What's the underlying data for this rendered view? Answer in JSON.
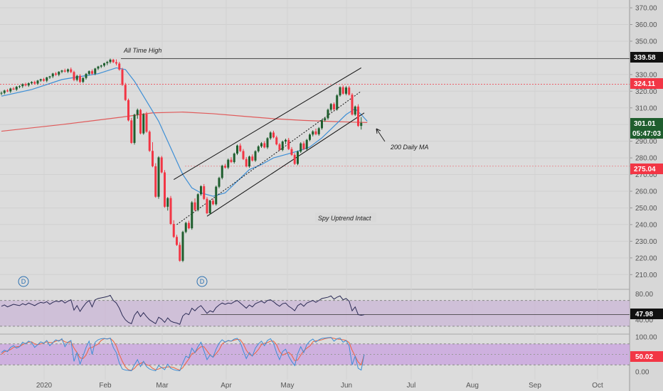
{
  "chart_data": {
    "type": "candlestick",
    "price_axis": {
      "ticks": [
        "370.00",
        "360.00",
        "350.00",
        "340.00",
        "330.00",
        "320.00",
        "310.00",
        "300.00",
        "290.00",
        "280.00",
        "270.00",
        "260.00",
        "250.00",
        "240.00",
        "230.00",
        "220.00",
        "210.00"
      ],
      "range": [
        205,
        373
      ]
    },
    "time_axis": {
      "ticks": [
        "2020",
        "Feb",
        "Mar",
        "Apr",
        "May",
        "Jun",
        "Jul",
        "Aug",
        "Sep",
        "Oct"
      ]
    },
    "price_labels": {
      "all_time_high": "339.58",
      "level_324": "324.11",
      "last_price": "301.01",
      "countdown": "05:47:03",
      "level_275": "275.04"
    },
    "annotations": {
      "ath": "All Time High",
      "ma200": "200 Daily MA",
      "uptrend": "Spy Uptrend Intact",
      "dividend_badge": "D"
    },
    "ohlc": [
      [
        318.6,
        319.8,
        317.6,
        319.0
      ],
      [
        319.0,
        320.9,
        318.1,
        320.4
      ],
      [
        320.4,
        321.3,
        319.5,
        319.9
      ],
      [
        319.9,
        322.1,
        319.0,
        321.6
      ],
      [
        321.6,
        322.5,
        320.7,
        321.0
      ],
      [
        321.0,
        323.1,
        320.2,
        322.7
      ],
      [
        322.7,
        323.6,
        321.8,
        323.0
      ],
      [
        323.0,
        324.7,
        322.0,
        324.2
      ],
      [
        324.2,
        325.1,
        322.9,
        323.5
      ],
      [
        323.5,
        325.3,
        322.6,
        324.8
      ],
      [
        324.8,
        326.0,
        324.0,
        325.5
      ],
      [
        325.5,
        326.3,
        324.1,
        324.6
      ],
      [
        324.6,
        326.8,
        323.8,
        326.4
      ],
      [
        326.4,
        327.5,
        325.6,
        327.2
      ],
      [
        327.2,
        328.0,
        325.7,
        326.3
      ],
      [
        326.3,
        328.6,
        325.4,
        328.3
      ],
      [
        328.3,
        329.2,
        327.4,
        328.9
      ],
      [
        328.9,
        331.0,
        327.9,
        330.6
      ],
      [
        330.6,
        331.5,
        329.2,
        329.9
      ],
      [
        329.9,
        332.0,
        329.0,
        331.7
      ],
      [
        331.7,
        332.8,
        330.8,
        332.4
      ],
      [
        332.4,
        333.5,
        331.2,
        331.8
      ],
      [
        331.8,
        333.6,
        330.9,
        333.1
      ],
      [
        333.1,
        334.2,
        330.8,
        331.5
      ],
      [
        331.5,
        332.3,
        326.0,
        326.8
      ],
      [
        326.8,
        329.8,
        325.9,
        329.2
      ],
      [
        329.2,
        330.2,
        324.8,
        325.6
      ],
      [
        325.6,
        328.4,
        324.9,
        327.9
      ],
      [
        327.9,
        330.9,
        327.0,
        330.4
      ],
      [
        330.4,
        332.5,
        329.5,
        332.0
      ],
      [
        332.0,
        333.0,
        329.8,
        330.5
      ],
      [
        330.5,
        334.0,
        329.6,
        333.6
      ],
      [
        333.6,
        335.2,
        332.7,
        334.8
      ],
      [
        334.8,
        335.9,
        333.9,
        335.4
      ],
      [
        335.4,
        337.1,
        334.5,
        336.8
      ],
      [
        336.8,
        338.2,
        335.6,
        337.5
      ],
      [
        337.5,
        339.6,
        336.6,
        338.9
      ],
      [
        338.9,
        339.4,
        336.9,
        337.4
      ],
      [
        337.4,
        339.1,
        335.5,
        336.6
      ],
      [
        336.6,
        337.6,
        332.3,
        333.0
      ],
      [
        333.0,
        334.0,
        323.2,
        323.8
      ],
      [
        323.8,
        325.0,
        314.1,
        314.7
      ],
      [
        314.7,
        315.6,
        301.9,
        302.5
      ],
      [
        302.5,
        304.0,
        288.4,
        289.0
      ],
      [
        289.0,
        306.5,
        288.0,
        305.9
      ],
      [
        305.9,
        309.6,
        303.5,
        308.8
      ],
      [
        308.8,
        309.4,
        294.1,
        294.7
      ],
      [
        294.7,
        306.8,
        293.9,
        306.2
      ],
      [
        306.2,
        307.6,
        295.1,
        295.7
      ],
      [
        295.7,
        296.5,
        283.6,
        284.2
      ],
      [
        284.2,
        289.4,
        274.4,
        275.0
      ],
      [
        275.0,
        276.8,
        256.1,
        256.7
      ],
      [
        256.7,
        281.0,
        255.5,
        280.3
      ],
      [
        280.3,
        281.2,
        270.7,
        271.3
      ],
      [
        271.3,
        272.7,
        250.1,
        250.7
      ],
      [
        250.7,
        256.5,
        248.4,
        255.9
      ],
      [
        255.9,
        257.2,
        239.8,
        240.4
      ],
      [
        240.4,
        242.6,
        232.0,
        232.6
      ],
      [
        232.6,
        233.9,
        227.2,
        227.8
      ],
      [
        227.8,
        229.4,
        217.7,
        218.3
      ],
      [
        218.3,
        236.3,
        217.5,
        235.6
      ],
      [
        235.6,
        241.7,
        234.8,
        241.0
      ],
      [
        241.0,
        242.3,
        237.2,
        237.8
      ],
      [
        237.8,
        254.1,
        236.9,
        253.3
      ],
      [
        253.3,
        255.7,
        248.1,
        248.7
      ],
      [
        248.7,
        258.8,
        247.9,
        258.2
      ],
      [
        258.2,
        263.6,
        257.3,
        263.0
      ],
      [
        263.0,
        264.3,
        254.8,
        255.4
      ],
      [
        255.4,
        256.5,
        246.2,
        246.8
      ],
      [
        246.8,
        254.9,
        246.0,
        254.3
      ],
      [
        254.3,
        255.5,
        251.6,
        252.2
      ],
      [
        252.2,
        263.4,
        251.4,
        262.7
      ],
      [
        262.7,
        268.7,
        261.8,
        268.0
      ],
      [
        268.0,
        275.9,
        267.1,
        275.3
      ],
      [
        275.3,
        276.4,
        273.6,
        274.2
      ],
      [
        274.2,
        279.6,
        273.3,
        278.9
      ],
      [
        278.9,
        280.4,
        276.9,
        277.5
      ],
      [
        277.5,
        283.2,
        276.6,
        282.6
      ],
      [
        282.6,
        288.0,
        281.7,
        287.4
      ],
      [
        287.4,
        288.7,
        283.5,
        284.1
      ],
      [
        284.1,
        285.3,
        278.7,
        279.3
      ],
      [
        279.3,
        280.5,
        274.3,
        274.9
      ],
      [
        274.9,
        281.4,
        274.1,
        280.8
      ],
      [
        280.8,
        282.1,
        277.8,
        278.4
      ],
      [
        278.4,
        284.6,
        277.6,
        284.0
      ],
      [
        284.0,
        287.6,
        283.2,
        286.9
      ],
      [
        286.9,
        289.5,
        286.0,
        288.8
      ],
      [
        288.8,
        290.0,
        285.7,
        286.3
      ],
      [
        286.3,
        292.4,
        285.4,
        291.8
      ],
      [
        291.8,
        295.9,
        290.9,
        295.2
      ],
      [
        295.2,
        296.3,
        291.7,
        292.3
      ],
      [
        292.3,
        293.3,
        287.5,
        288.1
      ],
      [
        288.1,
        289.0,
        284.2,
        284.8
      ],
      [
        284.8,
        290.4,
        284.0,
        289.8
      ],
      [
        289.8,
        291.5,
        288.3,
        290.8
      ],
      [
        290.8,
        292.0,
        284.7,
        285.3
      ],
      [
        285.3,
        286.5,
        281.2,
        281.8
      ],
      [
        281.8,
        282.9,
        275.8,
        276.4
      ],
      [
        276.4,
        284.4,
        275.6,
        283.8
      ],
      [
        283.8,
        289.4,
        283.0,
        288.7
      ],
      [
        288.7,
        289.9,
        284.7,
        285.3
      ],
      [
        285.3,
        291.4,
        284.5,
        290.8
      ],
      [
        290.8,
        294.7,
        290.0,
        294.0
      ],
      [
        294.0,
        296.6,
        292.9,
        295.9
      ],
      [
        295.9,
        297.6,
        293.6,
        294.2
      ],
      [
        294.2,
        298.5,
        293.3,
        297.8
      ],
      [
        297.8,
        303.2,
        296.9,
        302.6
      ],
      [
        302.6,
        304.5,
        301.7,
        303.8
      ],
      [
        303.8,
        309.6,
        302.9,
        308.9
      ],
      [
        308.9,
        312.9,
        307.8,
        312.3
      ],
      [
        312.3,
        313.3,
        308.5,
        309.1
      ],
      [
        309.1,
        318.2,
        308.3,
        317.5
      ],
      [
        317.5,
        322.9,
        316.7,
        322.4
      ],
      [
        322.4,
        323.5,
        317.9,
        318.5
      ],
      [
        318.5,
        323.0,
        317.6,
        322.2
      ],
      [
        322.2,
        323.2,
        317.4,
        317.9
      ],
      [
        317.9,
        318.9,
        305.4,
        306.0
      ],
      [
        306.0,
        311.4,
        305.2,
        310.8
      ],
      [
        310.8,
        312.2,
        298.6,
        299.2
      ],
      [
        299.2,
        304.5,
        297.0,
        301.0
      ]
    ],
    "sma20": [
      [
        0,
        317.0
      ],
      [
        10,
        321.0
      ],
      [
        20,
        327.0
      ],
      [
        25,
        328.5
      ],
      [
        32,
        330.5
      ],
      [
        38,
        334.0
      ],
      [
        41,
        333.0
      ],
      [
        44,
        326.0
      ],
      [
        48,
        314.0
      ],
      [
        52,
        302.0
      ],
      [
        56,
        286.0
      ],
      [
        60,
        270.0
      ],
      [
        63,
        262.0
      ],
      [
        66,
        259.0
      ],
      [
        70,
        257.0
      ],
      [
        74,
        259.0
      ],
      [
        78,
        266.0
      ],
      [
        82,
        273.0
      ],
      [
        86,
        276.0
      ],
      [
        90,
        280.0
      ],
      [
        94,
        282.0
      ],
      [
        98,
        284.0
      ],
      [
        102,
        286.5
      ],
      [
        106,
        292.0
      ],
      [
        110,
        299.0
      ],
      [
        114,
        306.0
      ],
      [
        117,
        309.5
      ],
      [
        119,
        306.0
      ],
      [
        121,
        302.0
      ]
    ],
    "sma200": [
      [
        0,
        296.0
      ],
      [
        20,
        300.0
      ],
      [
        40,
        304.5
      ],
      [
        50,
        307.0
      ],
      [
        60,
        307.5
      ],
      [
        70,
        306.5
      ],
      [
        80,
        305.0
      ],
      [
        90,
        303.5
      ],
      [
        100,
        302.5
      ],
      [
        110,
        301.8
      ],
      [
        121,
        301.2
      ]
    ],
    "channel": {
      "upper": [
        [
          57,
          267.0
        ],
        [
          119,
          334.0
        ]
      ],
      "lower": [
        [
          68,
          245.0
        ],
        [
          120,
          307.0
        ]
      ],
      "middle": [
        [
          58,
          240.0
        ],
        [
          119,
          320.0
        ]
      ]
    },
    "horizontal_levels": [
      339.58,
      324.11,
      275.04
    ],
    "rsi": {
      "ticks": [
        "80.00",
        "40.00"
      ],
      "last_value": "47.98",
      "band": [
        30,
        70
      ],
      "reference_level": 47.98,
      "values": [
        61,
        63,
        60,
        62,
        64,
        63,
        62,
        65,
        63,
        66,
        64,
        62,
        65,
        67,
        66,
        68,
        64,
        67,
        69,
        68,
        70,
        66,
        69,
        71,
        55,
        62,
        53,
        60,
        66,
        70,
        60,
        71,
        73,
        74,
        75,
        76,
        78,
        70,
        66,
        58,
        47,
        40,
        36,
        34,
        47,
        53,
        45,
        51,
        45,
        40,
        37,
        34,
        44,
        41,
        36,
        43,
        38,
        36,
        35,
        33,
        46,
        50,
        48,
        58,
        54,
        59,
        62,
        56,
        50,
        54,
        52,
        59,
        63,
        66,
        64,
        66,
        65,
        68,
        70,
        66,
        62,
        58,
        63,
        60,
        65,
        67,
        69,
        66,
        70,
        71,
        68,
        64,
        61,
        65,
        66,
        61,
        58,
        54,
        62,
        65,
        61,
        66,
        68,
        70,
        67,
        70,
        73,
        74,
        75,
        77,
        72,
        75,
        77,
        71,
        73,
        69,
        54,
        60,
        48,
        47,
        47.98
      ]
    },
    "stoch": {
      "ticks": [
        "100.00",
        "50.00",
        "0.00"
      ],
      "last_value": "50.02",
      "k": [
        55,
        62,
        58,
        70,
        75,
        68,
        72,
        85,
        80,
        88,
        84,
        70,
        78,
        86,
        82,
        90,
        75,
        84,
        92,
        88,
        95,
        72,
        85,
        90,
        30,
        55,
        22,
        45,
        70,
        88,
        50,
        85,
        92,
        95,
        96,
        94,
        97,
        70,
        55,
        25,
        8,
        5,
        4,
        3,
        20,
        35,
        15,
        30,
        15,
        8,
        5,
        3,
        18,
        12,
        6,
        22,
        10,
        6,
        4,
        3,
        25,
        45,
        40,
        68,
        55,
        72,
        85,
        60,
        35,
        48,
        42,
        65,
        82,
        92,
        85,
        90,
        88,
        94,
        96,
        85,
        60,
        38,
        55,
        45,
        68,
        80,
        88,
        75,
        90,
        95,
        82,
        55,
        35,
        58,
        65,
        45,
        30,
        18,
        52,
        72,
        55,
        78,
        88,
        94,
        85,
        92,
        96,
        97,
        98,
        99,
        88,
        95,
        97,
        85,
        90,
        75,
        20,
        45,
        10,
        5,
        50.02
      ],
      "d": [
        50,
        58,
        60,
        64,
        70,
        72,
        73,
        78,
        82,
        85,
        86,
        80,
        78,
        80,
        83,
        86,
        84,
        84,
        88,
        90,
        92,
        86,
        84,
        86,
        68,
        55,
        40,
        38,
        48,
        68,
        70,
        75,
        80,
        90,
        95,
        95,
        96,
        88,
        74,
        50,
        30,
        14,
        6,
        4,
        10,
        20,
        24,
        28,
        20,
        18,
        10,
        6,
        8,
        12,
        12,
        14,
        14,
        12,
        8,
        5,
        12,
        25,
        37,
        52,
        55,
        65,
        72,
        72,
        60,
        48,
        42,
        52,
        63,
        80,
        86,
        89,
        88,
        91,
        93,
        92,
        80,
        62,
        50,
        46,
        54,
        64,
        78,
        82,
        84,
        88,
        88,
        78,
        58,
        48,
        52,
        56,
        48,
        32,
        34,
        48,
        60,
        68,
        74,
        86,
        89,
        90,
        92,
        95,
        97,
        98,
        96,
        94,
        93,
        92,
        90,
        84,
        62,
        45,
        28,
        20,
        50.02
      ],
      "band": [
        20,
        80
      ]
    }
  }
}
